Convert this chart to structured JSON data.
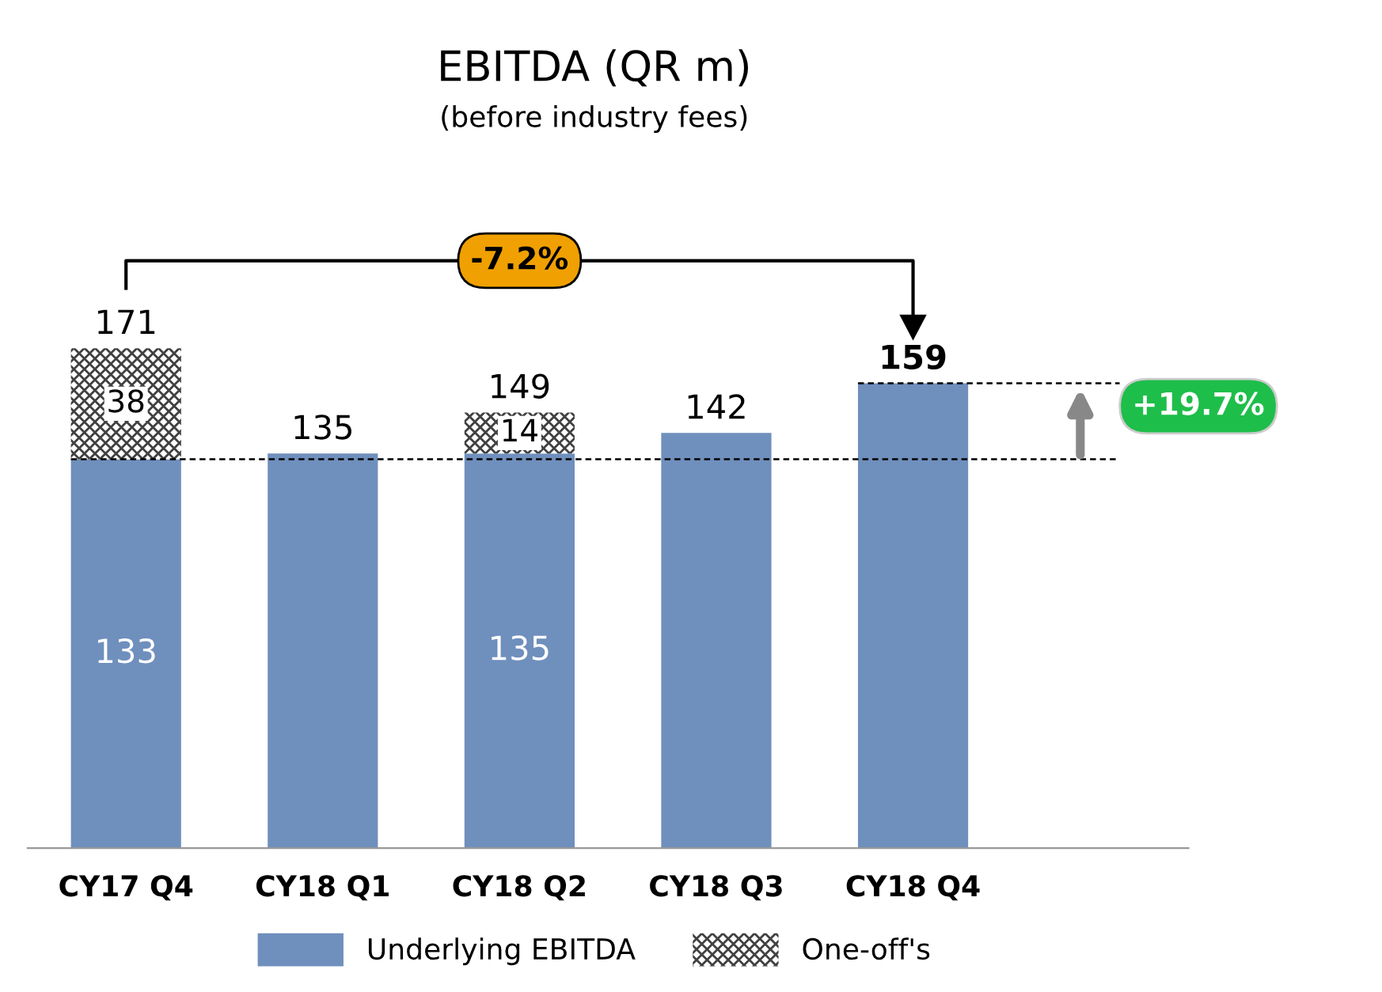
{
  "chart_data": {
    "type": "bar",
    "title": "EBITDA (QR m)",
    "subtitle": "(before industry fees)",
    "categories": [
      "CY17 Q4",
      "CY18 Q1",
      "CY18 Q2",
      "CY18 Q3",
      "CY18 Q4"
    ],
    "stacked": true,
    "series": [
      {
        "name": "Underlying EBITDA",
        "color": "#6f8fbd",
        "values": [
          133,
          135,
          135,
          142,
          159
        ],
        "value_labels": [
          "133",
          null,
          "135",
          null,
          null
        ]
      },
      {
        "name": "One-off's",
        "color": "#404040",
        "values": [
          38,
          null,
          14,
          null,
          null
        ],
        "value_labels": [
          "38",
          null,
          "14",
          null,
          null
        ]
      }
    ],
    "totals": [
      "171",
      "135",
      "149",
      "142",
      "159"
    ],
    "ref_lines": [
      {
        "axis": "y",
        "value": 133,
        "color": "#000000",
        "line_style": "dashed"
      },
      {
        "axis": "y",
        "value": 159,
        "color": "#000000",
        "line_style": "dashed"
      }
    ],
    "annotations": [
      "-7.2%",
      "+19.7%"
    ],
    "legend": "bottom",
    "grid": false
  }
}
